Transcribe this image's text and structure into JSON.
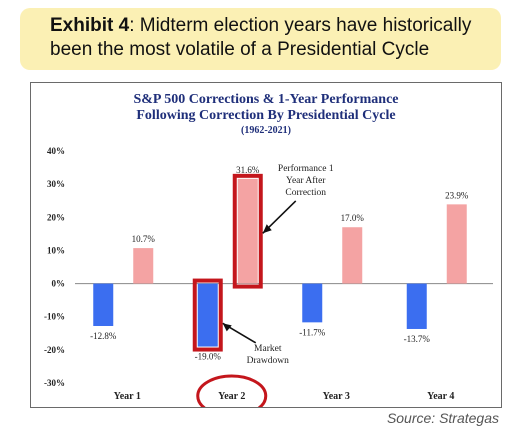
{
  "exhibit": {
    "label": "Exhibit 4",
    "caption_line1": ": Midterm election years have historically",
    "caption_line2": "been the most volatile of a Presidential Cycle"
  },
  "source": "Source: Strategas",
  "colors": {
    "banner_bg": "#fbf0b4",
    "title": "#1f2f7a",
    "drawdown": "#3b6ef0",
    "performance": "#f4a3a3",
    "highlight": "#c4161c"
  },
  "chart_data": {
    "type": "bar",
    "title": "S&P 500 Corrections & 1-Year Performance",
    "subtitle": "Following Correction By Presidential Cycle",
    "period": "(1962-2021)",
    "categories": [
      "Year 1",
      "Year 2",
      "Year 3",
      "Year 4"
    ],
    "series": [
      {
        "values": [
          -12.8,
          -19.0,
          -11.7,
          -13.7
        ],
        "labels": [
          "-12.8%",
          "-19.0%",
          "-11.7%",
          "-13.7%"
        ]
      },
      {
        "values": [
          10.7,
          31.6,
          17.0,
          23.9
        ],
        "labels": [
          "10.7%",
          "31.6%",
          "17.0%",
          "23.9%"
        ]
      }
    ],
    "ylim": [
      -30,
      40
    ],
    "yticks": [
      40,
      30,
      20,
      10,
      0,
      -10,
      -20,
      -30
    ],
    "ytick_labels": [
      "40%",
      "30%",
      "20%",
      "10%",
      "0%",
      "-10%",
      "-20%",
      "-30%"
    ],
    "annotations": {
      "performance": "Performance 1 Year After Correction",
      "drawdown": "Market Drawdown"
    },
    "highlight_category": "Year 2",
    "grid": false,
    "legend": "none"
  }
}
